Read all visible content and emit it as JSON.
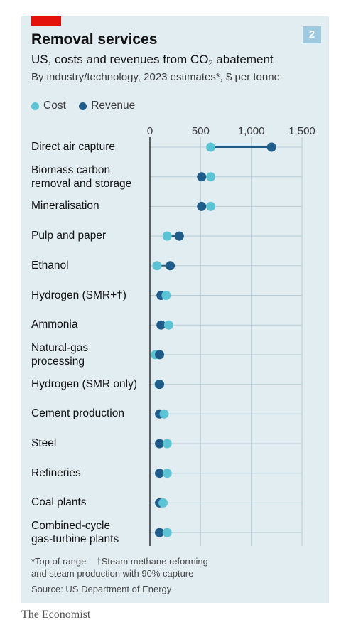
{
  "header": {
    "title": "Removal services",
    "badge": "2",
    "subtitle_pre": "US, costs and revenues from CO",
    "subtitle_sub": "2",
    "subtitle_post": " abatement",
    "subtitle2": "By industry/technology, 2023 estimates*, $ per tonne"
  },
  "legend": {
    "cost": "Cost",
    "revenue": "Revenue"
  },
  "colors": {
    "cost": "#5bc3d3",
    "revenue": "#1f5c8a",
    "panel": "#e2edf2",
    "accent": "#e3120b"
  },
  "notes": {
    "line1_a": "*Top of range",
    "line1_b": "†Steam methane reforming",
    "line2": "and steam production with 90% capture",
    "source": "Source: US Department of Energy"
  },
  "brand": "The Economist",
  "chart_data": {
    "type": "dot",
    "title": "Removal services",
    "xlim": [
      0,
      1500
    ],
    "xticks": [
      0,
      500,
      1000,
      1500
    ],
    "xtick_labels": [
      "0",
      "500",
      "1,000",
      "1,500"
    ],
    "grid": true,
    "legend_position": "top-left",
    "categories": [
      [
        "Direct air capture"
      ],
      [
        "Biomass carbon",
        "removal and storage"
      ],
      [
        "Mineralisation"
      ],
      [
        "Pulp and paper"
      ],
      [
        "Ethanol"
      ],
      [
        "Hydrogen (SMR+†)"
      ],
      [
        "Ammonia"
      ],
      [
        "Natural-gas",
        "processing"
      ],
      [
        "Hydrogen (SMR only)"
      ],
      [
        "Cement production"
      ],
      [
        "Steel"
      ],
      [
        "Refineries"
      ],
      [
        "Coal plants"
      ],
      [
        "Combined-cycle",
        "gas-turbine plants"
      ]
    ],
    "series": [
      {
        "name": "Cost",
        "values": [
          600,
          600,
          600,
          170,
          70,
          160,
          185,
          55,
          90,
          140,
          170,
          170,
          130,
          170
        ]
      },
      {
        "name": "Revenue",
        "values": [
          1200,
          510,
          510,
          290,
          200,
          110,
          110,
          95,
          95,
          95,
          95,
          95,
          95,
          95
        ]
      }
    ]
  }
}
